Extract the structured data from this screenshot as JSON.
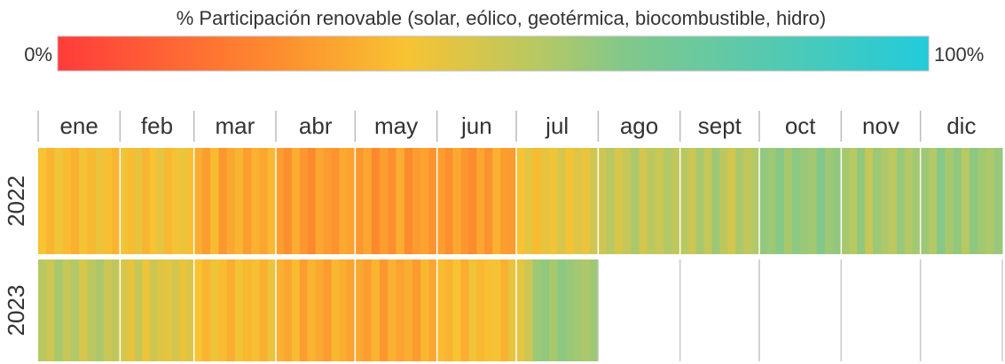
{
  "chart_data": {
    "type": "heatmap",
    "colorbar": {
      "title": "% Participación renovable (solar, eólico, geotérmica, biocombustible, hidro)",
      "ticks": [
        {
          "value": 0,
          "label": "0%"
        },
        {
          "value": 100,
          "label": "100%"
        }
      ],
      "lim": [
        0,
        100
      ]
    },
    "colorscale": [
      [
        0,
        "#ff3b3b"
      ],
      [
        25,
        "#fd8c2e"
      ],
      [
        40,
        "#f8c332"
      ],
      [
        55,
        "#b8c862"
      ],
      [
        65,
        "#82c88a"
      ],
      [
        100,
        "#22cbdb"
      ]
    ],
    "months": [
      "ene",
      "feb",
      "mar",
      "abr",
      "may",
      "jun",
      "jul",
      "ago",
      "sept",
      "oct",
      "nov",
      "dic"
    ],
    "rows": [
      {
        "name": "2022",
        "values": [
          [
            40,
            36,
            42,
            38,
            35,
            41,
            37,
            43,
            39,
            36
          ],
          [
            42,
            38,
            44,
            36,
            40,
            45,
            37,
            41,
            43,
            39
          ],
          [
            34,
            30,
            38,
            28,
            33,
            36,
            30,
            35,
            32,
            37
          ],
          [
            30,
            26,
            34,
            28,
            24,
            32,
            29,
            27,
            33,
            31
          ],
          [
            28,
            32,
            24,
            30,
            26,
            34,
            25,
            29,
            31,
            27
          ],
          [
            30,
            26,
            33,
            28,
            25,
            32,
            27,
            35,
            30,
            29
          ],
          [
            40,
            45,
            38,
            44,
            42,
            48,
            41,
            46,
            43,
            50
          ],
          [
            50,
            55,
            48,
            52,
            57,
            49,
            54,
            51,
            56,
            53
          ],
          [
            55,
            50,
            58,
            52,
            60,
            54,
            49,
            57,
            53,
            56
          ],
          [
            62,
            60,
            64,
            58,
            63,
            61,
            59,
            65,
            60,
            62
          ],
          [
            58,
            55,
            62,
            52,
            60,
            57,
            54,
            61,
            56,
            59
          ],
          [
            60,
            56,
            64,
            58,
            62,
            55,
            63,
            59,
            57,
            61
          ]
        ]
      },
      {
        "name": "2023",
        "values": [
          [
            55,
            50,
            58,
            52,
            56,
            48,
            54,
            57,
            51,
            53
          ],
          [
            48,
            44,
            52,
            42,
            50,
            46,
            45,
            49,
            43,
            47
          ],
          [
            40,
            36,
            42,
            38,
            34,
            41,
            37,
            39,
            35,
            43
          ],
          [
            35,
            32,
            38,
            30,
            36,
            33,
            29,
            37,
            34,
            31
          ],
          [
            33,
            30,
            36,
            28,
            35,
            31,
            34,
            29,
            37,
            32
          ],
          [
            38,
            36,
            40,
            34,
            42,
            37,
            39,
            41,
            35,
            44
          ],
          [
            45,
            50,
            60,
            62,
            58,
            63,
            61,
            59,
            57,
            60
          ]
        ]
      }
    ]
  }
}
